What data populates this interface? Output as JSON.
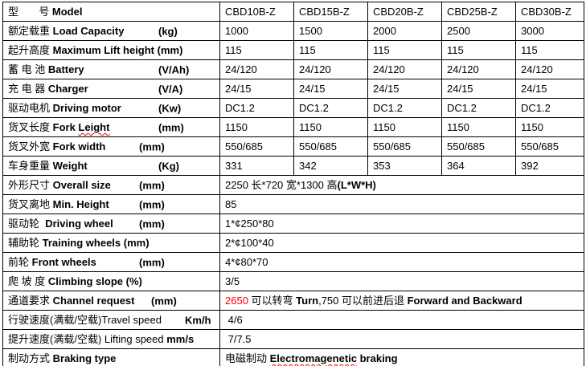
{
  "colors": {
    "border": "#000000",
    "text": "#000000",
    "highlight_red": "#ff0000",
    "background": "#ffffff"
  },
  "table": {
    "layout": {
      "label_col_width": 270,
      "value_col_widths": [
        92,
        92,
        92,
        92,
        85
      ]
    },
    "rows": [
      {
        "cn": "型       号 ",
        "en": "Model",
        "values": [
          "CBD10B-Z",
          "CBD15B-Z",
          "CBD20B-Z",
          "CBD25B-Z",
          "CBD30B-Z"
        ]
      },
      {
        "cn": "额定载重 ",
        "en": "Load Capacity",
        "unit": "(kg)",
        "tab": 193,
        "values": [
          "1000",
          "1500",
          "2000",
          "2500",
          "3000"
        ]
      },
      {
        "cn": "起升高度 ",
        "en": "Maximum Lift height ",
        "unit": "(mm)",
        "values": [
          "115",
          "115",
          "115",
          "115",
          "115"
        ]
      },
      {
        "cn": "蓄 电 池 ",
        "en": "Battery",
        "unit": "(V/Ah)",
        "tab": 193,
        "values": [
          "24/120",
          "24/120",
          "24/120",
          "24/120",
          "24/120"
        ]
      },
      {
        "cn": "充 电 器 ",
        "en": "Charger",
        "unit": "(V/A)",
        "tab": 193,
        "values": [
          "24/15",
          "24/15",
          "24/15",
          "24/15",
          "24/15"
        ]
      },
      {
        "cn": "驱动电机 ",
        "en": "Driving motor",
        "unit": "(Kw)",
        "tab": 193,
        "values": [
          "DC1.2",
          "DC1.2",
          "DC1.2",
          "DC1.2",
          "DC1.2"
        ]
      },
      {
        "cn": "货叉长度 ",
        "en": "Fork ",
        "mis": "Leight",
        "unit": "(mm)",
        "tab": 193,
        "values": [
          "1150",
          "1150",
          "1150",
          "1150",
          "1150"
        ]
      },
      {
        "cn": "货叉外宽 ",
        "en": "Fork width",
        "unit": "(mm)",
        "tab": 169,
        "values": [
          "550/685",
          "550/685",
          "550/685",
          "550/685",
          "550/685"
        ]
      },
      {
        "cn": "车身重量 ",
        "en": "Weight",
        "unit": "(Kg)",
        "tab": 193,
        "values": [
          "331",
          "342",
          "353",
          "364",
          "392"
        ]
      },
      {
        "cn": "外形尺寸 ",
        "en": "Overall size",
        "unit": "(mm)",
        "tab": 169,
        "value": [
          {
            "t": "2250 长*720 宽*1300 高"
          },
          {
            "t": "(L*W*H)",
            "b": true
          }
        ]
      },
      {
        "cn": "货叉离地 ",
        "en": "Min. Height",
        "unit": "(mm)",
        "tab": 169,
        "value": [
          {
            "t": "85"
          }
        ]
      },
      {
        "cn": "驱动轮  ",
        "en": "Driving wheel",
        "unit": "(mm)",
        "tab": 169,
        "value": [
          {
            "t": "1*¢250*80"
          }
        ]
      },
      {
        "cn": "辅助轮 ",
        "en": "Training wheels ",
        "unit": "(mm)",
        "value": [
          {
            "t": "2*¢100*40"
          }
        ]
      },
      {
        "cn": "前轮 ",
        "en": "Front wheels",
        "unit": "(mm)",
        "tab": 169,
        "value": [
          {
            "t": "4*¢80*70"
          }
        ]
      },
      {
        "cn": "爬 坡 度 ",
        "en": "Climbing slope ",
        "unit": "(%)",
        "value": [
          {
            "t": "3/5"
          }
        ]
      },
      {
        "cn": "通道要求 ",
        "en": "Channel request",
        "unit": "(mm)",
        "tab": 184,
        "value": [
          {
            "t": "2650",
            "red": true
          },
          {
            "t": " 可以转弯 "
          },
          {
            "t": "Turn",
            "b": true
          },
          {
            "t": ",750 可以前进后退 "
          },
          {
            "t": "Forward and Backward",
            "b": true
          }
        ]
      },
      {
        "cn": "行驶速度(满载/空载)",
        "enr": "Travel speed",
        "unit": "Km/h",
        "tab": 226,
        "value": [
          {
            "t": " 4/6"
          }
        ]
      },
      {
        "cn": "提升速度(满载/空载) ",
        "enr": "Lifting speed ",
        "unit": "mm/s",
        "value": [
          {
            "t": " 7/7.5"
          }
        ]
      },
      {
        "cn": "制动方式 ",
        "en": "Braking type",
        "value": [
          {
            "t": "电磁制动 "
          },
          {
            "t": "Electromagenetic",
            "b": true,
            "wavy": true
          },
          {
            "t": " braking",
            "b": true
          }
        ]
      }
    ]
  }
}
